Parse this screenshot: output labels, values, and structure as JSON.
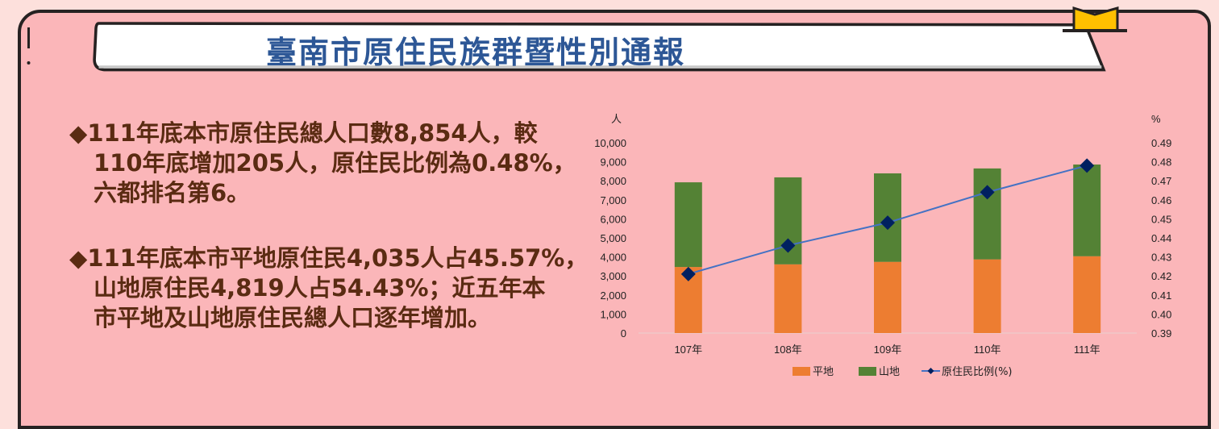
{
  "header": {
    "title": "臺南市原住民族群暨性別通報"
  },
  "bullets": [
    {
      "marker": "◆",
      "lines": [
        "111年底本市原住民總人口數8,854人，較",
        "110年底增加205人，原住民比例為0.48%，",
        "六都排名第6。"
      ]
    },
    {
      "marker": "◆",
      "lines": [
        "111年底本市平地原住民4,035人占45.57%，",
        "山地原住民4,819人占54.43%；近五年本",
        "市平地及山地原住民總人口逐年增加。"
      ]
    }
  ],
  "colors": {
    "background": "#fbb6b9",
    "outer_background": "#fde0dc",
    "title": "#2d5796",
    "text": "#5a2b12",
    "plains": "#ed7d31",
    "mountain": "#548235",
    "ratio_line": "#4472c4",
    "ratio_marker": "#002060",
    "bookmark": "#ffc000"
  },
  "chart_data": {
    "type": "bar",
    "subtype": "stacked bar + line (dual axis)",
    "title": "",
    "categories": [
      "107年",
      "108年",
      "109年",
      "110年",
      "111年"
    ],
    "series": [
      {
        "name": "平地",
        "type": "bar",
        "axis": "left",
        "values": [
          3470,
          3610,
          3740,
          3870,
          4035
        ]
      },
      {
        "name": "山地",
        "type": "bar",
        "axis": "left",
        "values": [
          4450,
          4570,
          4650,
          4779,
          4819
        ]
      },
      {
        "name": "原住民比例(%)",
        "type": "line",
        "axis": "right",
        "values": [
          0.421,
          0.436,
          0.448,
          0.464,
          0.478
        ]
      }
    ],
    "ylabel": "人",
    "y2label": "%",
    "ylim": [
      0,
      10000
    ],
    "y2lim": [
      0.39,
      0.49
    ],
    "yticks": [
      "0",
      "1,000",
      "2,000",
      "3,000",
      "4,000",
      "5,000",
      "6,000",
      "7,000",
      "8,000",
      "9,000",
      "10,000"
    ],
    "y2ticks": [
      "0.39",
      "0.40",
      "0.41",
      "0.42",
      "0.43",
      "0.44",
      "0.45",
      "0.46",
      "0.47",
      "0.48",
      "0.49"
    ],
    "legend": [
      "平地",
      "山地",
      "原住民比例(%)"
    ],
    "legend_position": "bottom",
    "grid": false
  }
}
